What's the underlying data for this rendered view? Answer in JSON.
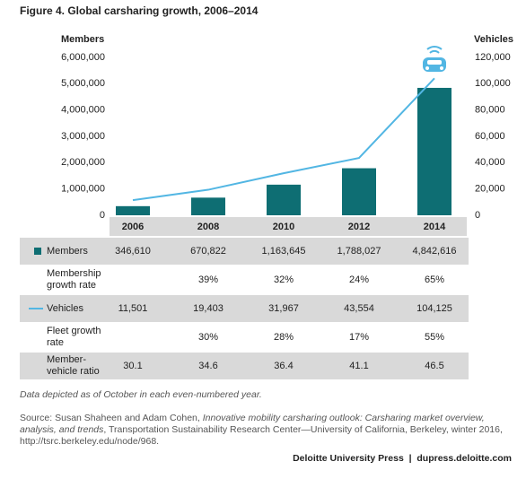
{
  "chart_data": {
    "type": "bar",
    "title": "Figure 4. Global carsharing growth, 2006–2014",
    "y_label": "Members",
    "y2_label": "Vehicles",
    "categories": [
      "2006",
      "2008",
      "2010",
      "2012",
      "2014"
    ],
    "series": [
      {
        "name": "Members",
        "type": "bar",
        "color": "#0e6e73",
        "values": [
          346610,
          670822,
          1163645,
          1788027,
          4842616
        ],
        "value_labels": [
          "346,610",
          "670,822",
          "1,163,645",
          "1,788,027",
          "4,842,616"
        ]
      },
      {
        "name": "Vehicles",
        "type": "line",
        "axis": "y2",
        "color": "#52b6e3",
        "values": [
          11501,
          19403,
          31967,
          43554,
          104125
        ],
        "value_labels": [
          "11,501",
          "19,403",
          "31,967",
          "43,554",
          "104,125"
        ]
      }
    ],
    "ylim": [
      0,
      6000000
    ],
    "yticks": [
      0,
      {
        "value": 1000000,
        "label": "1,000,000"
      },
      {
        "value": 2000000,
        "label": "2,000,000"
      },
      {
        "value": 3000000,
        "label": "3,000,000"
      },
      {
        "value": 4000000,
        "label": "4,000,000"
      },
      {
        "value": 5000000,
        "label": "5,000,000"
      },
      {
        "value": 6000000,
        "label": "6,000,000"
      }
    ],
    "y2lim": [
      0,
      120000
    ],
    "y2ticks": [
      0,
      {
        "value": 20000,
        "label": "20,000"
      },
      {
        "value": 40000,
        "label": "40,000"
      },
      {
        "value": 60000,
        "label": "60,000"
      },
      {
        "value": 80000,
        "label": "80,000"
      },
      {
        "value": 100000,
        "label": "100,000"
      },
      {
        "value": 120000,
        "label": "120,000"
      }
    ],
    "table_rows": [
      {
        "name": "Membership growth rate",
        "values": [
          null,
          39,
          32,
          24,
          65
        ],
        "value_labels": [
          null,
          "39%",
          "32%",
          "24%",
          "65%"
        ]
      },
      {
        "name": "Fleet growth rate",
        "values": [
          null,
          30,
          28,
          17,
          55
        ],
        "value_labels": [
          null,
          "30%",
          "28%",
          "17%",
          "55%"
        ]
      },
      {
        "name": "Member-vehicle ratio",
        "values": [
          30.1,
          34.6,
          36.4,
          41.1,
          46.5
        ]
      }
    ],
    "footnote": "Data depicted as of October in each even-numbered year.",
    "source": [
      "Source: Susan Shaheen and Adam Cohen, ",
      "Innovative mobility carsharing outlook: Carsharing market overview, analysis, and trends",
      ", Transportation Sustainability Research Center—University of California, Berkeley, winter 2016, http://tsrc.berkeley.edu/node/968."
    ],
    "credit": "Deloitte University Press  |  dupress.deloitte.com"
  }
}
